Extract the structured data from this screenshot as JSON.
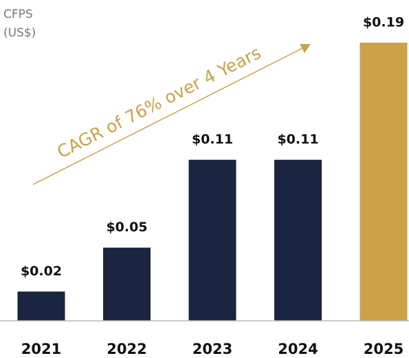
{
  "chart_data": {
    "type": "bar",
    "ylabel": [
      "CFPS",
      "(US$)"
    ],
    "annotation": "CAGR of 76% over 4 Years",
    "annotation_color": "#c9a24a",
    "categories": [
      "2021",
      "2022",
      "2023",
      "2024",
      "2025"
    ],
    "values": [
      0.02,
      0.05,
      0.11,
      0.11,
      0.19
    ],
    "value_labels": [
      "$0.02",
      "$0.05",
      "$0.11",
      "$0.11",
      "$0.19"
    ],
    "colors": [
      "#1b2440",
      "#1b2440",
      "#1b2440",
      "#1b2440",
      "#c9a24a"
    ]
  }
}
